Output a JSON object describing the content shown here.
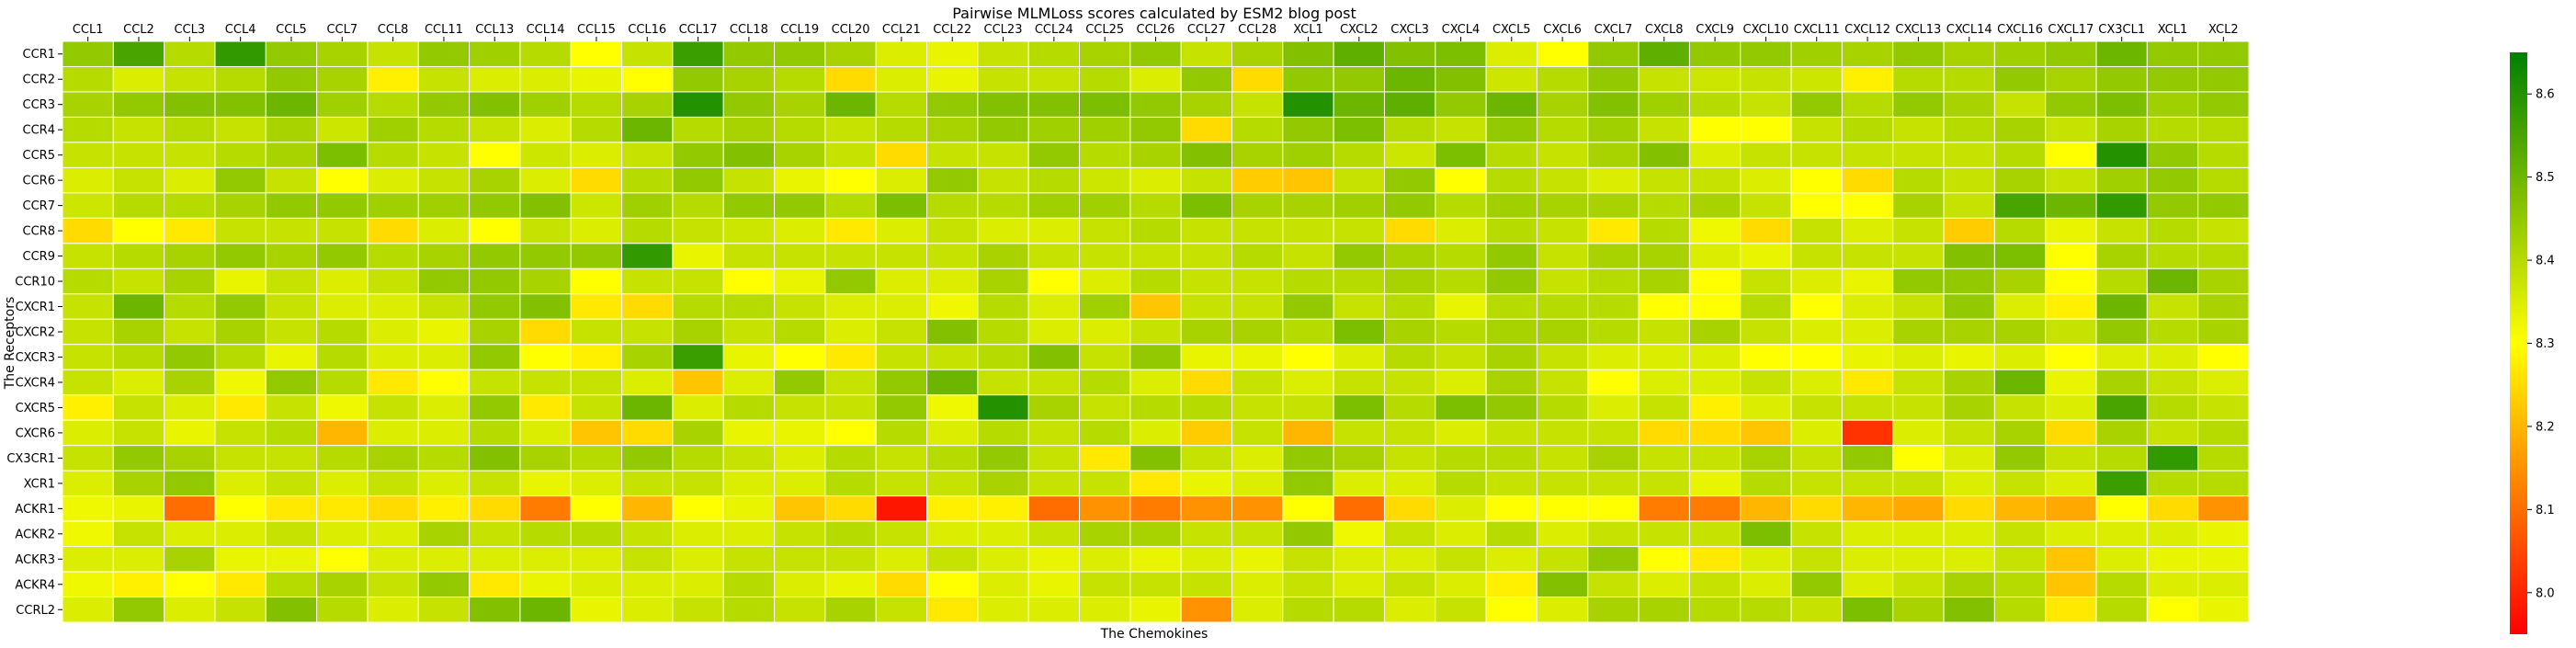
{
  "chart_data": {
    "type": "heatmap",
    "title": "Pairwise MLMLoss scores calculated by ESM2 blog post",
    "xlabel": "The Chemokines",
    "ylabel": "The Receptors",
    "x_tick_position": "top",
    "x_categories": [
      "CCL1",
      "CCL2",
      "CCL3",
      "CCL4",
      "CCL5",
      "CCL7",
      "CCL8",
      "CCL11",
      "CCL13",
      "CCL14",
      "CCL15",
      "CCL16",
      "CCL17",
      "CCL18",
      "CCL19",
      "CCL20",
      "CCL21",
      "CCL22",
      "CCL23",
      "CCL24",
      "CCL25",
      "CCL26",
      "CCL27",
      "CCL28",
      "XCL1",
      "CXCL2",
      "CXCL3",
      "CXCL4",
      "CXCL5",
      "CXCL6",
      "CXCL7",
      "CXCL8",
      "CXCL9",
      "CXCL10",
      "CXCL11",
      "CXCL12",
      "CXCL13",
      "CXCL14",
      "CXCL16",
      "CXCL17",
      "CX3CL1",
      "XCL1",
      "XCL2"
    ],
    "y_categories": [
      "CCR1",
      "CCR2",
      "CCR3",
      "CCR4",
      "CCR5",
      "CCR6",
      "CCR7",
      "CCR8",
      "CCR9",
      "CCR10",
      "CXCR1",
      "CXCR2",
      "CXCR3",
      "CXCR4",
      "CXCR5",
      "CXCR6",
      "CX3CR1",
      "XCR1",
      "ACKR1",
      "ACKR2",
      "ACKR3",
      "ACKR4",
      "CCRL2"
    ],
    "values": [
      [
        8.45,
        8.55,
        8.4,
        8.58,
        8.45,
        8.42,
        8.38,
        8.45,
        8.43,
        8.4,
        8.3,
        8.38,
        8.57,
        8.45,
        8.45,
        8.42,
        8.35,
        8.33,
        8.38,
        8.4,
        8.42,
        8.45,
        8.38,
        8.42,
        8.47,
        8.52,
        8.47,
        8.48,
        8.35,
        8.3,
        8.45,
        8.52,
        8.45,
        8.45,
        8.43,
        8.42,
        8.45,
        8.42,
        8.43,
        8.45,
        8.5,
        8.45,
        8.45
      ],
      [
        8.4,
        8.35,
        8.38,
        8.4,
        8.45,
        8.42,
        8.28,
        8.38,
        8.35,
        8.35,
        8.33,
        8.3,
        8.45,
        8.42,
        8.4,
        8.25,
        8.35,
        8.33,
        8.38,
        8.38,
        8.4,
        8.35,
        8.45,
        8.25,
        8.45,
        8.45,
        8.5,
        8.47,
        8.37,
        8.4,
        8.45,
        8.38,
        8.37,
        8.38,
        8.37,
        8.28,
        8.4,
        8.4,
        8.45,
        8.42,
        8.45,
        8.45,
        8.45
      ],
      [
        8.42,
        8.45,
        8.47,
        8.47,
        8.5,
        8.43,
        8.4,
        8.45,
        8.47,
        8.43,
        8.4,
        8.42,
        8.6,
        8.45,
        8.42,
        8.5,
        8.4,
        8.45,
        8.47,
        8.47,
        8.48,
        8.45,
        8.42,
        8.38,
        8.6,
        8.5,
        8.52,
        8.45,
        8.5,
        8.42,
        8.47,
        8.43,
        8.4,
        8.38,
        8.45,
        8.4,
        8.45,
        8.42,
        8.38,
        8.45,
        8.48,
        8.43,
        8.45
      ],
      [
        8.4,
        8.38,
        8.4,
        8.38,
        8.42,
        8.37,
        8.43,
        8.4,
        8.38,
        8.35,
        8.4,
        8.5,
        8.4,
        8.42,
        8.4,
        8.38,
        8.4,
        8.42,
        8.45,
        8.43,
        8.43,
        8.45,
        8.25,
        8.4,
        8.45,
        8.48,
        8.4,
        8.38,
        8.45,
        8.4,
        8.43,
        8.38,
        8.3,
        8.3,
        8.38,
        8.4,
        8.38,
        8.4,
        8.42,
        8.38,
        8.42,
        8.4,
        8.4
      ],
      [
        8.38,
        8.38,
        8.38,
        8.4,
        8.42,
        8.48,
        8.4,
        8.38,
        8.3,
        8.37,
        8.35,
        8.38,
        8.45,
        8.47,
        8.42,
        8.38,
        8.25,
        8.38,
        8.38,
        8.45,
        8.4,
        8.42,
        8.47,
        8.42,
        8.43,
        8.4,
        8.37,
        8.48,
        8.4,
        8.38,
        8.42,
        8.47,
        8.35,
        8.38,
        8.38,
        8.38,
        8.38,
        8.38,
        8.4,
        8.3,
        8.6,
        8.45,
        8.4
      ],
      [
        8.35,
        8.38,
        8.35,
        8.45,
        8.38,
        8.3,
        8.35,
        8.38,
        8.42,
        8.35,
        8.25,
        8.4,
        8.45,
        8.38,
        8.33,
        8.3,
        8.35,
        8.45,
        8.38,
        8.4,
        8.37,
        8.35,
        8.38,
        8.23,
        8.22,
        8.38,
        8.45,
        8.3,
        8.4,
        8.38,
        8.35,
        8.38,
        8.38,
        8.35,
        8.3,
        8.25,
        8.4,
        8.38,
        8.42,
        8.38,
        8.43,
        8.45,
        8.4
      ],
      [
        8.37,
        8.4,
        8.4,
        8.42,
        8.45,
        8.45,
        8.43,
        8.43,
        8.45,
        8.47,
        8.37,
        8.43,
        8.4,
        8.45,
        8.45,
        8.4,
        8.48,
        8.4,
        8.4,
        8.43,
        8.43,
        8.4,
        8.48,
        8.42,
        8.42,
        8.43,
        8.45,
        8.4,
        8.43,
        8.42,
        8.42,
        8.4,
        8.42,
        8.38,
        8.3,
        8.3,
        8.42,
        8.38,
        8.55,
        8.5,
        8.58,
        8.45,
        8.45
      ],
      [
        8.25,
        8.3,
        8.27,
        8.38,
        8.38,
        8.38,
        8.25,
        8.35,
        8.3,
        8.38,
        8.35,
        8.4,
        8.38,
        8.37,
        8.35,
        8.27,
        8.35,
        8.38,
        8.35,
        8.35,
        8.38,
        8.4,
        8.38,
        8.38,
        8.38,
        8.38,
        8.25,
        8.35,
        8.4,
        8.38,
        8.27,
        8.4,
        8.32,
        8.25,
        8.38,
        8.35,
        8.38,
        8.23,
        8.4,
        8.33,
        8.38,
        8.4,
        8.38
      ],
      [
        8.38,
        8.4,
        8.42,
        8.45,
        8.42,
        8.45,
        8.4,
        8.42,
        8.45,
        8.45,
        8.45,
        8.58,
        8.33,
        8.38,
        8.38,
        8.38,
        8.38,
        8.38,
        8.42,
        8.38,
        8.38,
        8.38,
        8.38,
        8.4,
        8.38,
        8.45,
        8.42,
        8.4,
        8.45,
        8.38,
        8.42,
        8.42,
        8.35,
        8.33,
        8.38,
        8.38,
        8.38,
        8.47,
        8.48,
        8.3,
        8.42,
        8.4,
        8.4
      ],
      [
        8.4,
        8.38,
        8.42,
        8.33,
        8.38,
        8.35,
        8.38,
        8.45,
        8.45,
        8.42,
        8.3,
        8.38,
        8.38,
        8.3,
        8.33,
        8.45,
        8.35,
        8.35,
        8.42,
        8.3,
        8.35,
        8.4,
        8.38,
        8.38,
        8.4,
        8.4,
        8.42,
        8.4,
        8.45,
        8.38,
        8.4,
        8.42,
        8.3,
        8.38,
        8.35,
        8.33,
        8.45,
        8.45,
        8.42,
        8.3,
        8.4,
        8.5,
        8.42
      ],
      [
        8.38,
        8.5,
        8.4,
        8.45,
        8.38,
        8.35,
        8.35,
        8.38,
        8.45,
        8.47,
        8.27,
        8.25,
        8.4,
        8.4,
        8.38,
        8.35,
        8.35,
        8.32,
        8.4,
        8.35,
        8.43,
        8.22,
        8.38,
        8.38,
        8.45,
        8.38,
        8.4,
        8.33,
        8.4,
        8.4,
        8.4,
        8.3,
        8.3,
        8.4,
        8.3,
        8.35,
        8.38,
        8.45,
        8.35,
        8.28,
        8.5,
        8.38,
        8.42
      ],
      [
        8.38,
        8.42,
        8.38,
        8.42,
        8.38,
        8.4,
        8.35,
        8.33,
        8.42,
        8.25,
        8.38,
        8.38,
        8.42,
        8.38,
        8.4,
        8.35,
        8.38,
        8.47,
        8.4,
        8.35,
        8.35,
        8.38,
        8.42,
        8.42,
        8.4,
        8.48,
        8.42,
        8.4,
        8.42,
        8.42,
        8.4,
        8.38,
        8.42,
        8.38,
        8.35,
        8.35,
        8.42,
        8.42,
        8.42,
        8.38,
        8.45,
        8.4,
        8.42
      ],
      [
        8.38,
        8.4,
        8.45,
        8.4,
        8.33,
        8.4,
        8.35,
        8.35,
        8.45,
        8.3,
        8.28,
        8.42,
        8.57,
        8.33,
        8.3,
        8.27,
        8.38,
        8.38,
        8.4,
        8.47,
        8.38,
        8.45,
        8.33,
        8.33,
        8.3,
        8.35,
        8.4,
        8.38,
        8.42,
        8.38,
        8.35,
        8.35,
        8.35,
        8.3,
        8.3,
        8.33,
        8.35,
        8.33,
        8.35,
        8.3,
        8.35,
        8.35,
        8.3
      ],
      [
        8.38,
        8.35,
        8.42,
        8.32,
        8.45,
        8.4,
        8.27,
        8.3,
        8.38,
        8.38,
        8.38,
        8.35,
        8.22,
        8.35,
        8.45,
        8.38,
        8.45,
        8.5,
        8.38,
        8.38,
        8.4,
        8.35,
        8.25,
        8.38,
        8.35,
        8.38,
        8.38,
        8.35,
        8.42,
        8.38,
        8.3,
        8.35,
        8.35,
        8.38,
        8.35,
        8.27,
        8.38,
        8.42,
        8.5,
        8.33,
        8.42,
        8.38,
        8.35
      ],
      [
        8.28,
        8.38,
        8.35,
        8.27,
        8.38,
        8.32,
        8.38,
        8.35,
        8.45,
        8.27,
        8.38,
        8.5,
        8.35,
        8.4,
        8.38,
        8.38,
        8.45,
        8.32,
        8.6,
        8.42,
        8.38,
        8.4,
        8.4,
        8.38,
        8.38,
        8.48,
        8.4,
        8.48,
        8.45,
        8.4,
        8.35,
        8.38,
        8.28,
        8.35,
        8.38,
        8.38,
        8.38,
        8.42,
        8.38,
        8.35,
        8.55,
        8.4,
        8.38
      ],
      [
        8.35,
        8.38,
        8.33,
        8.38,
        8.4,
        8.2,
        8.35,
        8.35,
        8.4,
        8.35,
        8.22,
        8.25,
        8.42,
        8.33,
        8.33,
        8.3,
        8.4,
        8.35,
        8.4,
        8.38,
        8.4,
        8.35,
        8.23,
        8.38,
        8.2,
        8.38,
        8.38,
        8.35,
        8.38,
        8.38,
        8.38,
        8.25,
        8.25,
        8.22,
        8.35,
        8.02,
        8.35,
        8.38,
        8.42,
        8.25,
        8.42,
        8.38,
        8.4
      ],
      [
        8.38,
        8.45,
        8.42,
        8.38,
        8.38,
        8.4,
        8.42,
        8.4,
        8.47,
        8.42,
        8.4,
        8.45,
        8.4,
        8.38,
        8.35,
        8.4,
        8.38,
        8.4,
        8.45,
        8.38,
        8.27,
        8.47,
        8.38,
        8.35,
        8.45,
        8.42,
        8.38,
        8.4,
        8.4,
        8.38,
        8.42,
        8.38,
        8.38,
        8.42,
        8.38,
        8.45,
        8.3,
        8.35,
        8.45,
        8.38,
        8.4,
        8.58,
        8.4
      ],
      [
        8.35,
        8.42,
        8.45,
        8.35,
        8.38,
        8.35,
        8.38,
        8.35,
        8.38,
        8.33,
        8.35,
        8.38,
        8.38,
        8.35,
        8.35,
        8.4,
        8.38,
        8.38,
        8.42,
        8.38,
        8.38,
        8.27,
        8.33,
        8.35,
        8.45,
        8.35,
        8.35,
        8.4,
        8.38,
        8.38,
        8.38,
        8.38,
        8.33,
        8.4,
        8.38,
        8.38,
        8.38,
        8.35,
        8.38,
        8.35,
        8.57,
        8.4,
        8.4
      ],
      [
        8.32,
        8.33,
        8.1,
        8.3,
        8.27,
        8.27,
        8.25,
        8.28,
        8.25,
        8.12,
        8.3,
        8.2,
        8.3,
        8.33,
        8.22,
        8.25,
        7.98,
        8.28,
        8.28,
        8.1,
        8.15,
        8.12,
        8.15,
        8.15,
        8.3,
        8.1,
        8.25,
        8.35,
        8.3,
        8.3,
        8.3,
        8.12,
        8.12,
        8.2,
        8.25,
        8.2,
        8.18,
        8.25,
        8.2,
        8.18,
        8.3,
        8.25,
        8.15
      ],
      [
        8.32,
        8.38,
        8.35,
        8.35,
        8.38,
        8.35,
        8.35,
        8.42,
        8.38,
        8.4,
        8.4,
        8.38,
        8.35,
        8.35,
        8.38,
        8.4,
        8.38,
        8.35,
        8.35,
        8.38,
        8.42,
        8.42,
        8.38,
        8.38,
        8.45,
        8.32,
        8.38,
        8.35,
        8.4,
        8.35,
        8.38,
        8.38,
        8.38,
        8.48,
        8.38,
        8.35,
        8.35,
        8.35,
        8.38,
        8.35,
        8.35,
        8.35,
        8.33
      ],
      [
        8.35,
        8.35,
        8.42,
        8.33,
        8.33,
        8.3,
        8.35,
        8.35,
        8.35,
        8.35,
        8.35,
        8.38,
        8.35,
        8.38,
        8.38,
        8.38,
        8.35,
        8.38,
        8.35,
        8.33,
        8.35,
        8.33,
        8.35,
        8.33,
        8.38,
        8.35,
        8.35,
        8.38,
        8.35,
        8.38,
        8.45,
        8.3,
        8.27,
        8.35,
        8.38,
        8.35,
        8.35,
        8.35,
        8.38,
        8.22,
        8.35,
        8.33,
        8.33
      ],
      [
        8.32,
        8.28,
        8.3,
        8.27,
        8.4,
        8.42,
        8.38,
        8.45,
        8.27,
        8.33,
        8.35,
        8.35,
        8.35,
        8.4,
        8.35,
        8.33,
        8.25,
        8.3,
        8.35,
        8.33,
        8.38,
        8.38,
        8.38,
        8.35,
        8.38,
        8.35,
        8.38,
        8.35,
        8.28,
        8.47,
        8.38,
        8.35,
        8.38,
        8.35,
        8.45,
        8.35,
        8.38,
        8.42,
        8.4,
        8.22,
        8.4,
        8.35,
        8.35
      ],
      [
        8.35,
        8.45,
        8.35,
        8.38,
        8.47,
        8.4,
        8.35,
        8.38,
        8.47,
        8.5,
        8.33,
        8.35,
        8.38,
        8.4,
        8.38,
        8.42,
        8.38,
        8.27,
        8.35,
        8.35,
        8.35,
        8.33,
        8.15,
        8.35,
        8.4,
        8.4,
        8.35,
        8.38,
        8.3,
        8.35,
        8.42,
        8.42,
        8.4,
        8.4,
        8.38,
        8.48,
        8.42,
        8.47,
        8.4,
        8.27,
        8.4,
        8.3,
        8.33
      ]
    ],
    "colorscale": {
      "min": 7.95,
      "max": 8.65,
      "colors": [
        "#ff0000",
        "#ffff00",
        "#008000"
      ]
    },
    "colorbar_ticks": [
      "8.0",
      "8.1",
      "8.2",
      "8.3",
      "8.4",
      "8.5",
      "8.6"
    ],
    "colorbar_tick_values": [
      8.0,
      8.1,
      8.2,
      8.3,
      8.4,
      8.5,
      8.6
    ]
  }
}
